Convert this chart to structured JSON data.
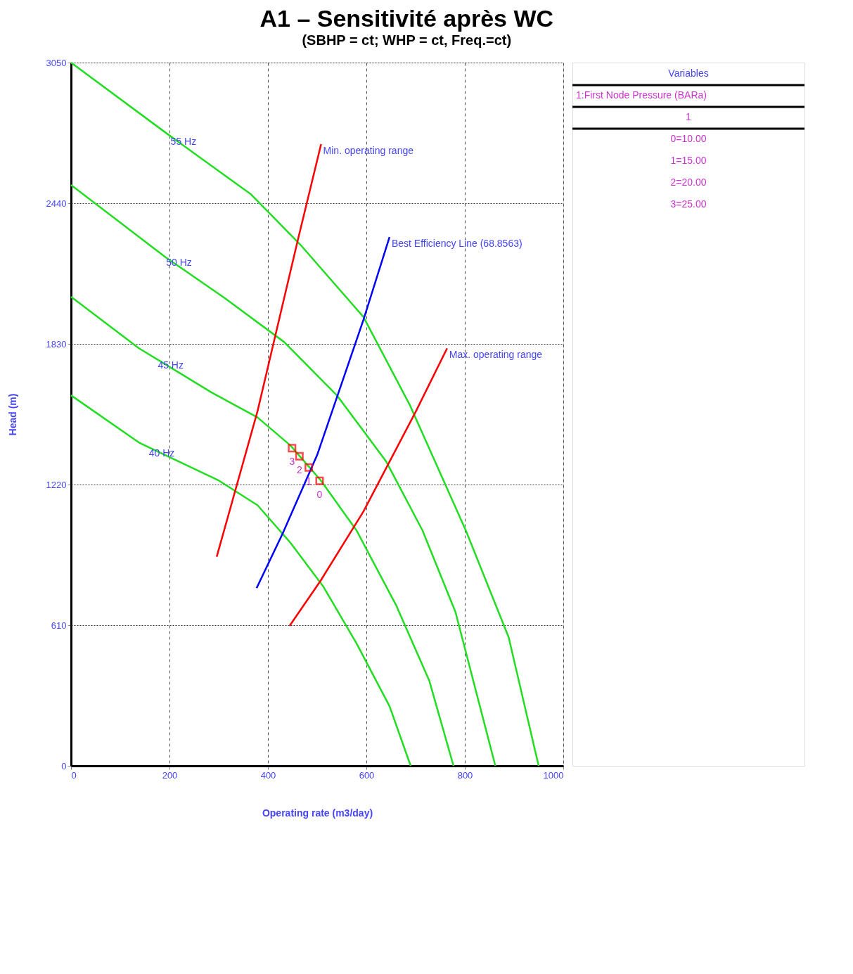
{
  "chart_data": {
    "type": "line",
    "title": "A1 – Sensitivité après WC",
    "subtitle": "(SBHP = ct; WHP = ct, Freq.=ct)",
    "xlabel": "Operating rate   (m3/day)",
    "ylabel": "Head   (m)",
    "xlim": [
      0,
      1000
    ],
    "xticks": [
      0,
      200,
      400,
      600,
      800,
      1000
    ],
    "ylim": [
      0,
      3050
    ],
    "yticks": [
      0,
      610,
      1220,
      1830,
      2440,
      3050
    ],
    "grid": true,
    "series": [
      {
        "color": "#22dd22",
        "x": [
          0,
          198,
          366,
          466,
          594,
          688,
          802,
          889,
          950
        ],
        "values": [
          3050,
          2737,
          2478,
          2260,
          1947,
          1566,
          1021,
          558,
          0
        ]
      },
      {
        "color": "#22dd22",
        "x": [
          0,
          192,
          312,
          433,
          540,
          640,
          714,
          781,
          862
        ],
        "values": [
          2519,
          2206,
          2029,
          1838,
          1607,
          1321,
          1021,
          667,
          0
        ]
      },
      {
        "color": "#22dd22",
        "x": [
          0,
          138,
          285,
          379,
          446,
          507,
          580,
          661,
          728,
          777
        ],
        "values": [
          2034,
          1811,
          1620,
          1511,
          1389,
          1239,
          1021,
          694,
          368,
          0
        ]
      },
      {
        "color": "#22dd22",
        "x": [
          0,
          138,
          299,
          379,
          446,
          513,
          580,
          647,
          690
        ],
        "values": [
          1607,
          1402,
          1239,
          1130,
          967,
          776,
          531,
          259,
          0
        ]
      },
      {
        "color": "#ff0000",
        "x": [
          296,
          379,
          460,
          508
        ],
        "values": [
          907,
          1539,
          2274,
          2696
        ]
      },
      {
        "color": "#0000ff",
        "x": [
          377,
          430,
          500,
          594,
          647
        ],
        "values": [
          771,
          1008,
          1348,
          1934,
          2293
        ]
      },
      {
        "color": "#ff0000",
        "x": [
          444,
          507,
          594,
          701,
          764
        ],
        "values": [
          607,
          803,
          1103,
          1539,
          1811
        ]
      },
      {
        "type": "scatter",
        "marker": "square",
        "color": "#ff0000",
        "x": [
          449,
          464,
          483,
          505
        ],
        "values": [
          1378,
          1343,
          1294,
          1236
        ]
      }
    ],
    "annotations": [
      {
        "text": "55 Hz",
        "x": 198,
        "y": 2737
      },
      {
        "text": "50 Hz",
        "x": 189,
        "y": 2211
      },
      {
        "text": "45 Hz",
        "x": 172,
        "y": 1767
      },
      {
        "text": "40 Hz",
        "x": 154,
        "y": 1386
      },
      {
        "text": "Min. operating range",
        "x": 508,
        "y": 2696
      },
      {
        "text": "Best Efficiency Line (68.8563)",
        "x": 647,
        "y": 2293
      },
      {
        "text": "Max. operating range",
        "x": 764,
        "y": 1811
      },
      {
        "text": "3",
        "x": 449,
        "y": 1378
      },
      {
        "text": "2",
        "x": 464,
        "y": 1343
      },
      {
        "text": "1",
        "x": 483,
        "y": 1294
      },
      {
        "text": "0",
        "x": 505,
        "y": 1236
      },
      "Variables",
      "1:First Node Pressure (BARa)",
      "1",
      "0=10.00",
      "1=15.00",
      "2=20.00",
      "3=25.00"
    ]
  }
}
